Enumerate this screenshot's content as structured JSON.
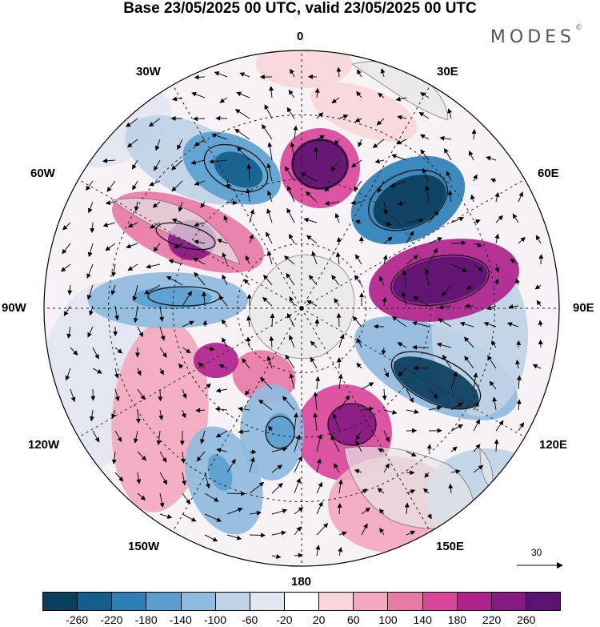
{
  "title": "Base 23/05/2025 00 UTC, valid 23/05/2025 00 UTC",
  "brand": {
    "name": "MODES",
    "mark": "©"
  },
  "longitude_labels": [
    "0",
    "30E",
    "60E",
    "90E",
    "120E",
    "150E",
    "180",
    "150W",
    "120W",
    "90W",
    "60W",
    "30W"
  ],
  "reference_vector": {
    "label": "30"
  },
  "colorbar": {
    "ticks": [
      "-260",
      "-220",
      "-180",
      "-140",
      "-100",
      "-60",
      "-20",
      "20",
      "60",
      "100",
      "140",
      "180",
      "220",
      "260"
    ],
    "colors": [
      "#0b3d5c",
      "#145e8c",
      "#2d7fb6",
      "#5b9fcf",
      "#8fbbdc",
      "#bfd2e6",
      "#e2e6f0",
      "#ffffff",
      "#f8d6db",
      "#f3a9bf",
      "#e87aa6",
      "#d9479a",
      "#b0238c",
      "#861a83",
      "#5c1270"
    ]
  }
}
